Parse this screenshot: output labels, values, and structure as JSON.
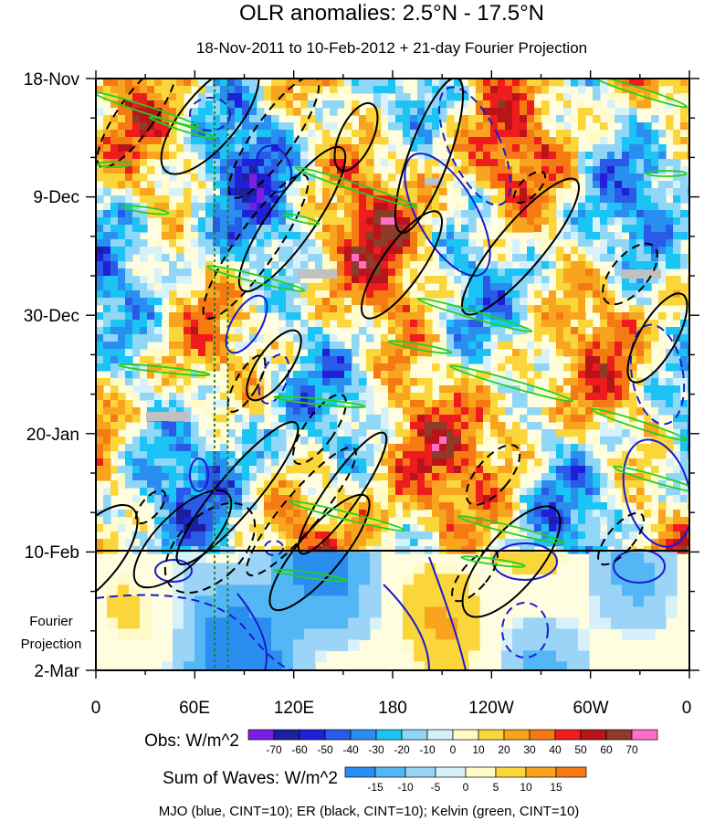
{
  "chart_data": {
    "type": "heatmap",
    "title": "OLR anomalies: 2.5°N - 17.5°N",
    "subtitle": "18-Nov-2011 to 10-Feb-2012 + 21-day Fourier Projection",
    "x_axis": {
      "label": "",
      "ticks": [
        "0",
        "60E",
        "120E",
        "180",
        "120W",
        "60W",
        "0"
      ],
      "range_deg_east": [
        0,
        360
      ]
    },
    "y_axis": {
      "label": "",
      "ticks": [
        "18-Nov",
        "9-Dec",
        "30-Dec",
        "20-Jan",
        "10-Feb",
        "2-Mar"
      ],
      "range_days": [
        0,
        105
      ],
      "tick_days": [
        0,
        21,
        42,
        63,
        84,
        105
      ]
    },
    "projection_start_label": "10-Feb",
    "projection_label_lines": [
      "Fourier",
      "Projection"
    ],
    "reference_lines_deg_east": [
      72,
      80
    ],
    "obs_colorbar": {
      "label": "Obs: W/m^2",
      "ticks": [
        "-70",
        "-60",
        "-50",
        "-40",
        "-30",
        "-20",
        "-10",
        "0",
        "10",
        "20",
        "30",
        "40",
        "50",
        "60",
        "70"
      ],
      "colors": [
        "#7a1ee6",
        "#1e1ea0",
        "#2020d8",
        "#2a5ae8",
        "#2a8ef0",
        "#1cc3f5",
        "#8fd6f7",
        "#d7f1fb",
        "#fffbc8",
        "#fbd63a",
        "#f8a41e",
        "#f57a14",
        "#ee1c1c",
        "#b8141a",
        "#8c3c28",
        "#ff6fc7"
      ]
    },
    "waves_colorbar": {
      "label": "Sum of Waves: W/m^2",
      "ticks": [
        "-15",
        "-10",
        "-5",
        "0",
        "5",
        "10",
        "15"
      ],
      "colors": [
        "#2a8ef0",
        "#53b6f5",
        "#9cd4f7",
        "#d7f1fb",
        "#fffbc8",
        "#fbd63a",
        "#f8a41e",
        "#f57a14"
      ]
    },
    "footer": "MJO (blue, CINT=10); ER (black, CINT=10); Kelvin (green, CINT=10)",
    "series": [
      {
        "name": "MJO",
        "color": "#1a1ad2",
        "cint": 10
      },
      {
        "name": "ER",
        "color": "#000000",
        "cint": 10
      },
      {
        "name": "Kelvin",
        "color": "#22d022",
        "cint": 10
      }
    ],
    "missing_color": "#c0c0c0"
  }
}
